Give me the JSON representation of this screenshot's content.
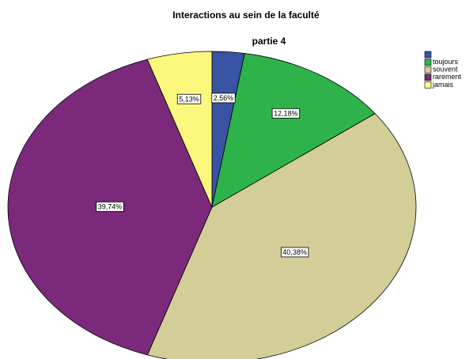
{
  "chart_data": {
    "type": "pie",
    "title": "Interactions au sein de la faculté",
    "subtitle": "partie 4",
    "categories": [
      null,
      "toujours",
      "souvent",
      "rarement",
      "jamais"
    ],
    "values": [
      2.56,
      12.18,
      40.38,
      39.74,
      5.13
    ],
    "value_labels": [
      "2,56%",
      "12,18%",
      "40,38%",
      "39,74%",
      "5,13%"
    ],
    "colors": [
      "#3953a4",
      "#2db34a",
      "#d3ce97",
      "#7b2a7b",
      "#fbf87d"
    ],
    "legend": "right"
  }
}
